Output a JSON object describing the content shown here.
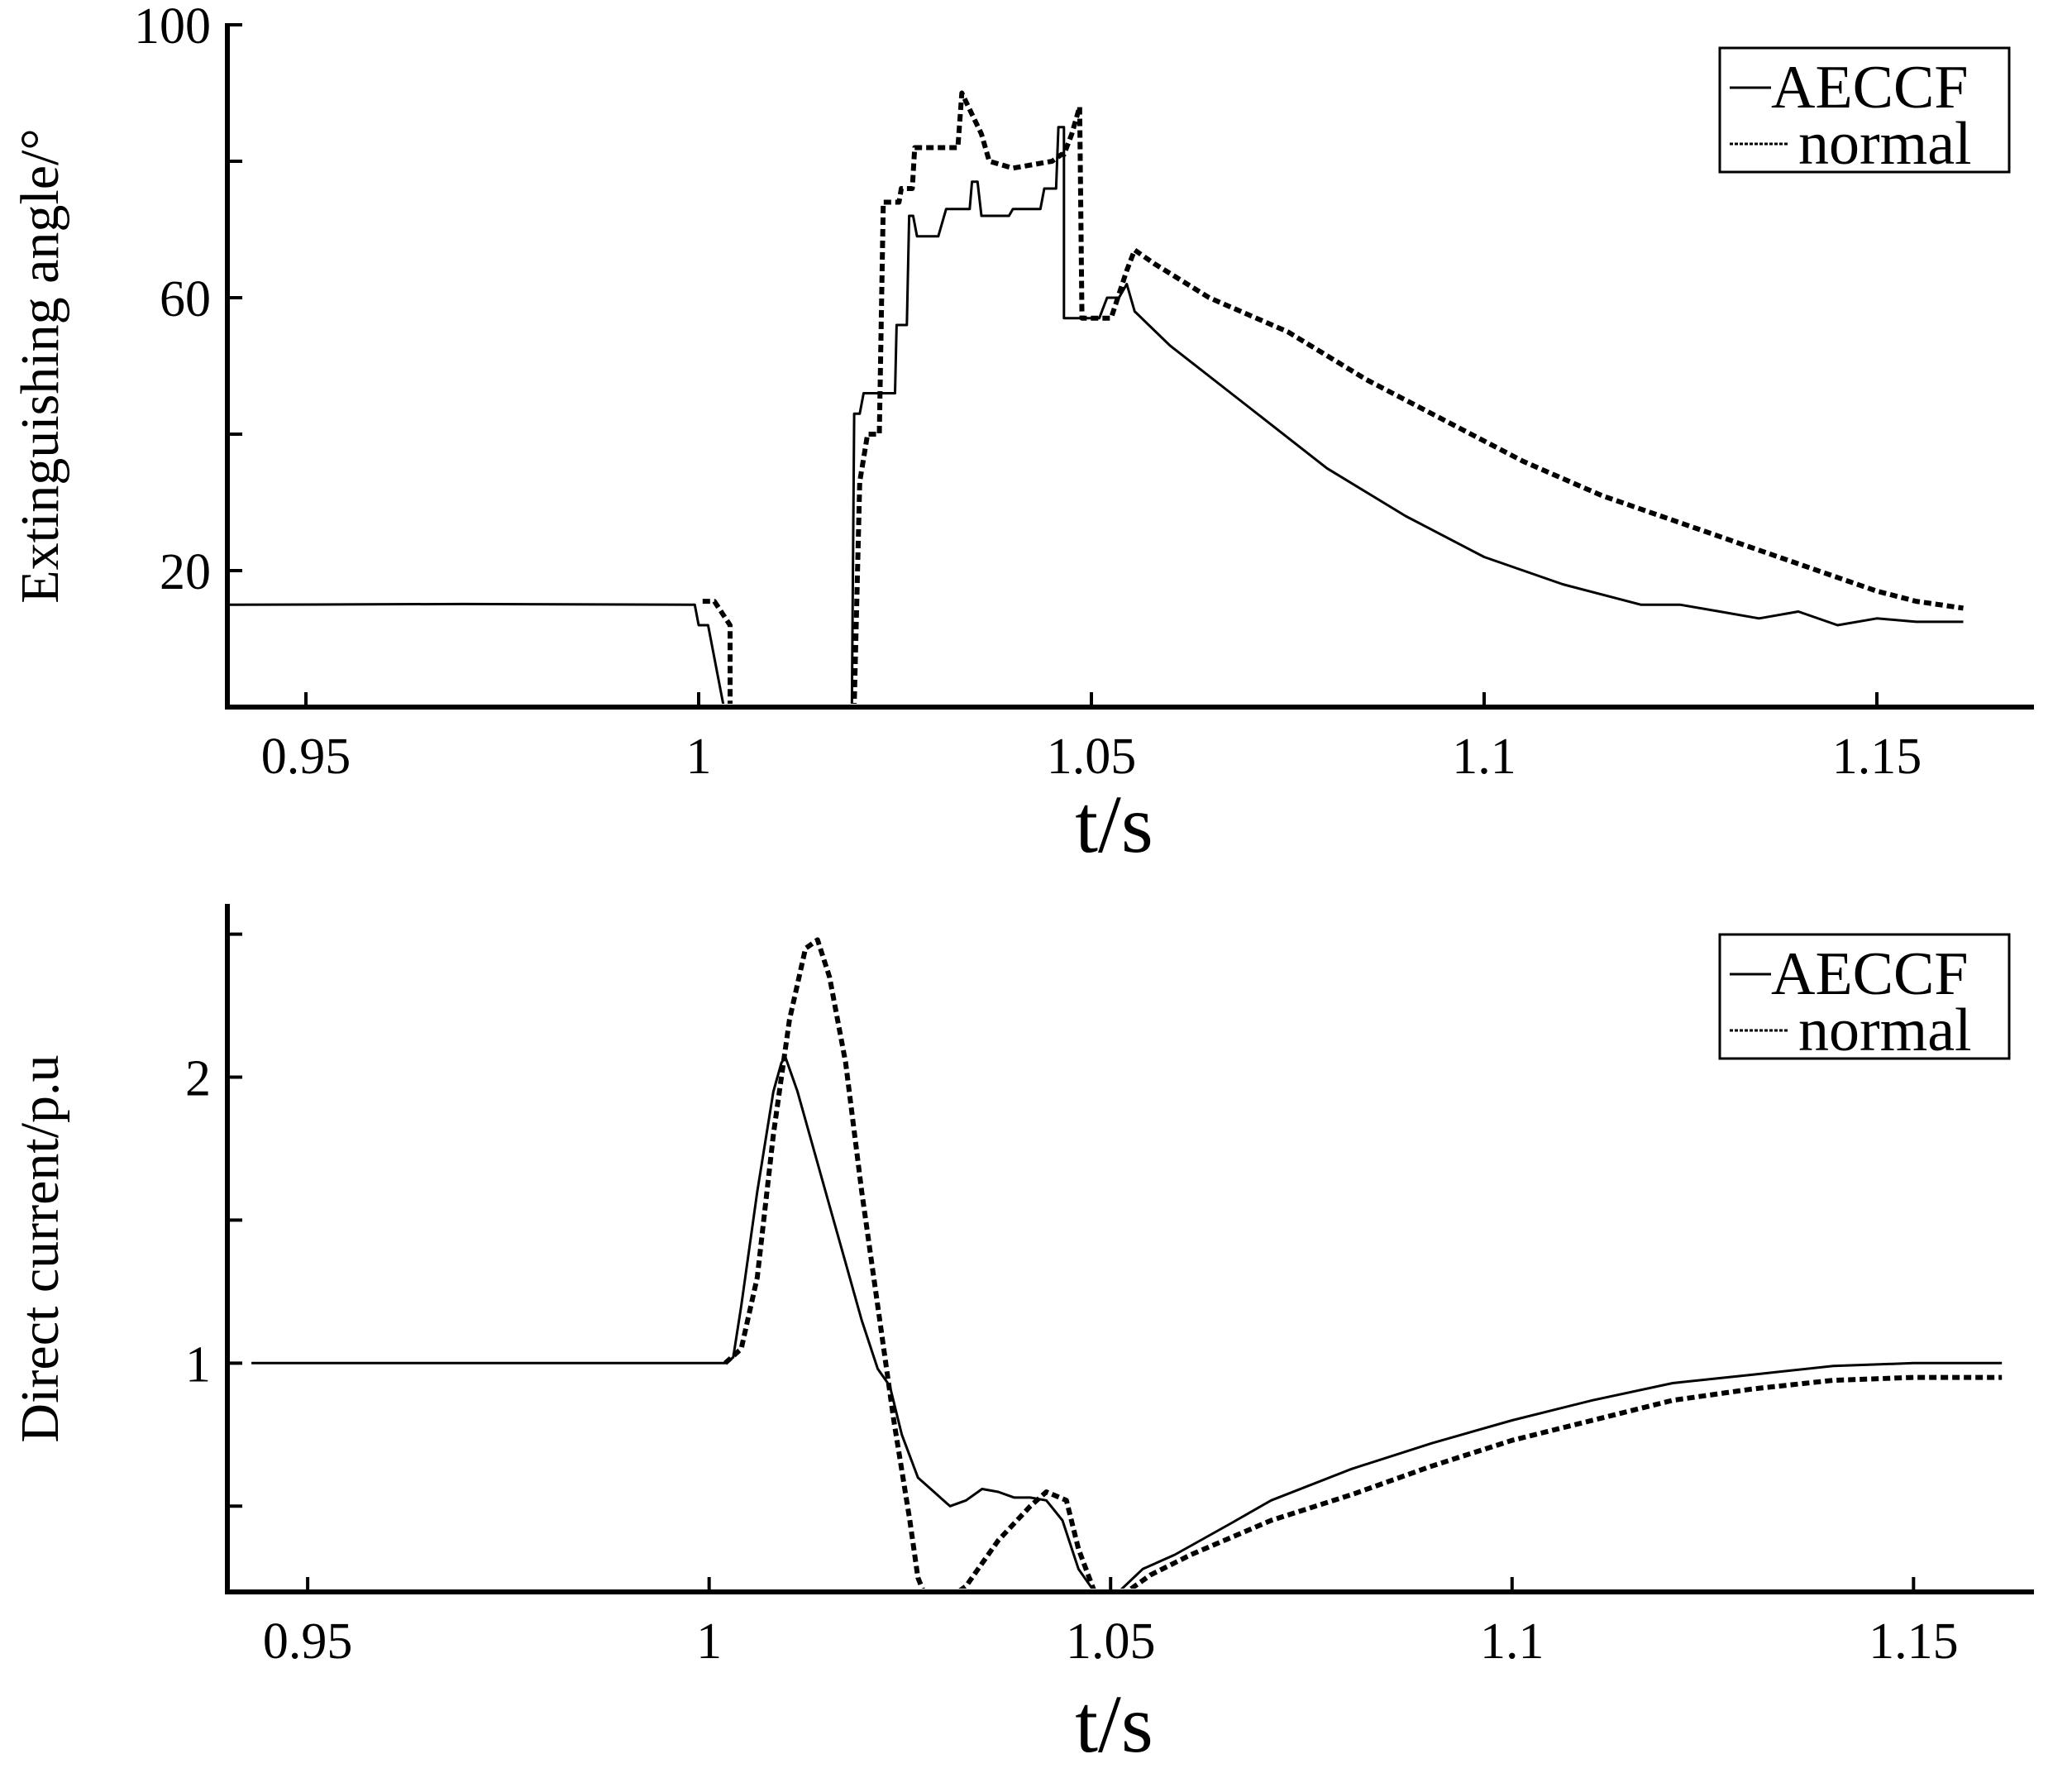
{
  "chart_data": [
    {
      "type": "line",
      "title": "",
      "xlabel": "t/s",
      "ylabel": "Extinguishing angle/°",
      "xlim": [
        0.94,
        1.17
      ],
      "ylim": [
        0,
        100
      ],
      "xticks": [
        0.95,
        1.0,
        1.05,
        1.1,
        1.15
      ],
      "xtick_labels": [
        "0.95",
        "1",
        "1.05",
        "1.1",
        "1.15"
      ],
      "yticks": [
        20,
        40,
        60,
        80,
        100
      ],
      "ytick_labels": [
        "20",
        "",
        "60",
        "",
        "100"
      ],
      "grid": false,
      "legend": "top-right",
      "series": [
        {
          "name": "AECCF",
          "style": "solid",
          "x": [
            0.94,
            0.97,
            0.9995,
            1.0,
            1.0012,
            1.0032,
            1.0032,
            1.0195,
            1.0198,
            1.0205,
            1.021,
            1.0215,
            1.0222,
            1.0225,
            1.025,
            1.0252,
            1.0265,
            1.0268,
            1.0273,
            1.0278,
            1.0285,
            1.0305,
            1.0315,
            1.0345,
            1.0348,
            1.0355,
            1.036,
            1.0395,
            1.04,
            1.0435,
            1.044,
            1.0455,
            1.0458,
            1.0465,
            1.0465,
            1.0505,
            1.051,
            1.052,
            1.0535,
            1.0545,
            1.0555,
            1.06,
            1.07,
            1.08,
            1.09,
            1.1,
            1.11,
            1.12,
            1.125,
            1.13,
            1.135,
            1.14,
            1.145,
            1.15,
            1.155,
            1.161
          ],
          "values": [
            15,
            15.1,
            15,
            12,
            12,
            0,
            0,
            0,
            43,
            43,
            46,
            46,
            46,
            46,
            46,
            56,
            56,
            72,
            72,
            69,
            69,
            69,
            73,
            73,
            77,
            77,
            72,
            72,
            73,
            73,
            76,
            76,
            85,
            85,
            57,
            57,
            57,
            60,
            60,
            62,
            58,
            53,
            44,
            35,
            28,
            22,
            18,
            15,
            15,
            14,
            13,
            14,
            12,
            13,
            12.5,
            12.5
          ]
        },
        {
          "name": "normal",
          "style": "dashed",
          "x": [
            1.0005,
            1.002,
            1.004,
            1.004,
            1.0198,
            1.0205,
            1.0215,
            1.023,
            1.0235,
            1.0255,
            1.0258,
            1.0272,
            1.0275,
            1.0305,
            1.031,
            1.033,
            1.0335,
            1.036,
            1.037,
            1.04,
            1.045,
            1.0462,
            1.0465,
            1.0475,
            1.0485,
            1.0488,
            1.0525,
            1.0545,
            1.0555,
            1.058,
            1.065,
            1.075,
            1.085,
            1.095,
            1.105,
            1.115,
            1.125,
            1.135,
            1.145,
            1.15,
            1.155,
            1.161
          ],
          "values": [
            15.5,
            15.5,
            12,
            0,
            0,
            33,
            40,
            40,
            74,
            74,
            76,
            76,
            82,
            82,
            82,
            82,
            90,
            84,
            80,
            79,
            80,
            81,
            81,
            84,
            88,
            57,
            57,
            64,
            67,
            65,
            60,
            55,
            48,
            42,
            36,
            31,
            27,
            23,
            19,
            17,
            15.5,
            14.5
          ]
        }
      ]
    },
    {
      "type": "line",
      "title": "",
      "xlabel": "t/s",
      "ylabel": "Direct current/p.u",
      "xlim": [
        0.94,
        1.165
      ],
      "ylim": [
        0.2,
        2.6
      ],
      "xticks": [
        0.95,
        1.0,
        1.05,
        1.1,
        1.15
      ],
      "xtick_labels": [
        "0.95",
        "1",
        "1.05",
        "1.1",
        "1.15"
      ],
      "yticks": [
        0.5,
        1,
        1.5,
        2,
        2.5
      ],
      "ytick_labels": [
        "",
        "1",
        "",
        "2",
        ""
      ],
      "grid": false,
      "legend": "top-right",
      "series": [
        {
          "name": "AECCF",
          "style": "solid",
          "x": [
            0.943,
            0.96,
            0.98,
            1.0,
            1.002,
            1.003,
            1.004,
            1.006,
            1.008,
            1.009,
            1.0095,
            1.011,
            1.013,
            1.015,
            1.017,
            1.019,
            1.021,
            1.0225,
            1.024,
            1.026,
            1.028,
            1.03,
            1.032,
            1.034,
            1.036,
            1.038,
            1.04,
            1.042,
            1.044,
            1.046,
            1.048,
            1.0495,
            1.051,
            1.054,
            1.058,
            1.065,
            1.07,
            1.08,
            1.09,
            1.1,
            1.11,
            1.12,
            1.13,
            1.14,
            1.15,
            1.161
          ],
          "values": [
            1.0,
            1.0,
            1.0,
            1.0,
            1.0,
            1.02,
            1.2,
            1.6,
            1.95,
            2.05,
            2.07,
            1.95,
            1.75,
            1.55,
            1.35,
            1.15,
            0.98,
            0.92,
            0.75,
            0.6,
            0.55,
            0.5,
            0.52,
            0.56,
            0.55,
            0.53,
            0.53,
            0.52,
            0.45,
            0.28,
            0.2,
            0.14,
            0.2,
            0.28,
            0.33,
            0.44,
            0.52,
            0.63,
            0.72,
            0.8,
            0.87,
            0.93,
            0.96,
            0.99,
            1.0,
            1.0
          ]
        },
        {
          "name": "normal",
          "style": "dashed",
          "x": [
            1.002,
            1.004,
            1.006,
            1.008,
            1.01,
            1.012,
            1.0135,
            1.015,
            1.017,
            1.019,
            1.021,
            1.023,
            1.025,
            1.026,
            1.027,
            1.028,
            1.03,
            1.032,
            1.034,
            1.036,
            1.038,
            1.04,
            1.042,
            1.0445,
            1.046,
            1.048,
            1.049,
            1.0505,
            1.052,
            1.055,
            1.06,
            1.07,
            1.08,
            1.09,
            1.1,
            1.11,
            1.12,
            1.13,
            1.14,
            1.15,
            1.161
          ],
          "values": [
            1.0,
            1.05,
            1.3,
            1.8,
            2.2,
            2.45,
            2.48,
            2.35,
            2.05,
            1.6,
            1.2,
            0.8,
            0.45,
            0.25,
            0.18,
            0.17,
            0.18,
            0.22,
            0.3,
            0.38,
            0.44,
            0.5,
            0.55,
            0.52,
            0.35,
            0.2,
            0.16,
            0.15,
            0.2,
            0.26,
            0.33,
            0.45,
            0.54,
            0.64,
            0.73,
            0.8,
            0.87,
            0.91,
            0.94,
            0.95,
            0.95
          ]
        }
      ]
    }
  ]
}
